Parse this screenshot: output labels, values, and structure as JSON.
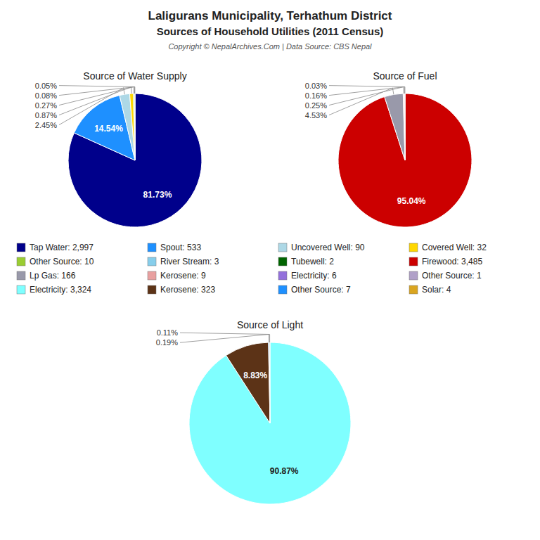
{
  "title": "Laligurans Municipality, Terhathum District",
  "subtitle": "Sources of Household Utilities (2011 Census)",
  "annotations": [
    "Copyright © NepalArchives.Com | Data Source: CBS Nepal"
  ],
  "chart_data": [
    {
      "type": "pie",
      "title": "Source of Water Supply",
      "categories": [
        "Tap Water: 2,997",
        "Spout: 533",
        "Uncovered Well: 90",
        "Covered Well: 32",
        "Other Source: 10",
        "River Stream: 3",
        "Tubewell: 2"
      ],
      "values": [
        81.73,
        14.54,
        2.45,
        0.87,
        0.27,
        0.08,
        0.05
      ],
      "value_labels": [
        "81.73%",
        "14.54%",
        "2.45%",
        "0.87%",
        "0.27%",
        "0.08%",
        "0.05%"
      ],
      "colors": [
        "#00008B",
        "#1E90FF",
        "#ADD8E6",
        "#FFD700",
        "#9ACD32",
        "#87CEEB",
        "#006400"
      ],
      "data_labels": true,
      "legend": "center"
    },
    {
      "type": "pie",
      "title": "Source of Fuel",
      "categories": [
        "Firewood: 3,485",
        "Lp Gas: 166",
        "Kerosene: 9",
        "Electricity: 6",
        "Other Source: 1"
      ],
      "values": [
        95.04,
        4.53,
        0.25,
        0.16,
        0.03
      ],
      "value_labels": [
        "95.04%",
        "4.53%",
        "0.25%",
        "0.16%",
        "0.03%"
      ],
      "colors": [
        "#CC0000",
        "#9999AA",
        "#E8A0A0",
        "#9370DB",
        "#B0A0C8"
      ],
      "data_labels": true,
      "legend": "center"
    },
    {
      "type": "pie",
      "title": "Source of Light",
      "categories": [
        "Electricity: 3,324",
        "Kerosene: 323",
        "Other Source: 7",
        "Solar: 4"
      ],
      "values": [
        90.87,
        8.83,
        0.19,
        0.11
      ],
      "value_labels": [
        "90.87%",
        "8.83%",
        "0.19%",
        "0.11%"
      ],
      "colors": [
        "#7FFFFF",
        "#5C3317",
        "#1E90FF",
        "#DAA520"
      ],
      "data_labels": true,
      "legend": "center"
    }
  ]
}
